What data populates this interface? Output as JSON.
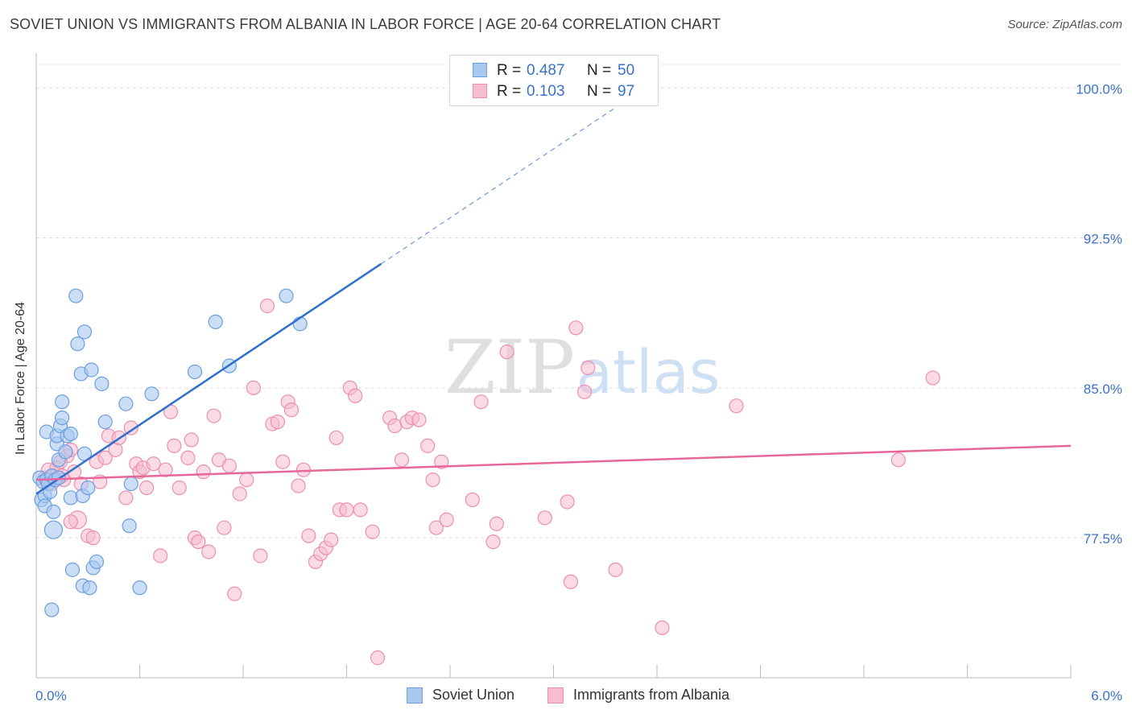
{
  "title": "SOVIET UNION VS IMMIGRANTS FROM ALBANIA IN LABOR FORCE | AGE 20-64 CORRELATION CHART",
  "source": "Source: ZipAtlas.com",
  "watermark": {
    "zip": "ZIP",
    "atlas": "atlas"
  },
  "colors": {
    "blue_fill": "#a9c8f0",
    "blue_stroke": "#6a9fe0",
    "blue_line": "#2e6fcc",
    "pink_fill": "#f6bcd0",
    "pink_stroke": "#ec8fb0",
    "pink_line": "#e8679a",
    "grid": "#e0e0e0",
    "tick_text": "#3a72c7"
  },
  "stats_legend": {
    "rows": [
      {
        "r_label": "R =",
        "r_value": "0.487",
        "n_label": "N =",
        "n_value": "50"
      },
      {
        "r_label": "R =",
        "r_value": "0.103",
        "n_label": "N =",
        "n_value": "97"
      }
    ]
  },
  "bottom_legend": [
    "Soviet Union",
    "Immigrants from Albania"
  ],
  "chart_data": {
    "type": "scatter",
    "title": "SOVIET UNION VS IMMIGRANTS FROM ALBANIA IN LABOR FORCE | AGE 20-64 CORRELATION CHART",
    "xlabel": "",
    "ylabel": "In Labor Force | Age 20-64",
    "xlim": [
      0.0,
      6.0
    ],
    "ylim": [
      70.5,
      101.5
    ],
    "x_tick_labels": [
      "0.0%",
      "6.0%"
    ],
    "y_ticks": [
      77.5,
      85.0,
      92.5,
      100.0
    ],
    "y_tick_labels": [
      "77.5%",
      "85.0%",
      "92.5%",
      "100.0%"
    ],
    "grid": true,
    "legend_position": "top-center",
    "series": [
      {
        "name": "Soviet Union",
        "r": 0.487,
        "n": 50,
        "trend": {
          "x0": 0.0,
          "y0": 79.7,
          "x1": 2.0,
          "y1": 91.2,
          "dashed_to_x": 3.35
        },
        "points": [
          [
            0.02,
            80.5
          ],
          [
            0.03,
            79.4
          ],
          [
            0.04,
            80.3
          ],
          [
            0.05,
            79.6
          ],
          [
            0.05,
            79.1
          ],
          [
            0.06,
            80.4
          ],
          [
            0.06,
            82.8
          ],
          [
            0.07,
            80.2
          ],
          [
            0.08,
            79.8
          ],
          [
            0.09,
            80.6
          ],
          [
            0.1,
            78.8
          ],
          [
            0.1,
            77.9
          ],
          [
            0.11,
            80.4
          ],
          [
            0.12,
            82.2
          ],
          [
            0.12,
            82.6
          ],
          [
            0.13,
            81.4
          ],
          [
            0.13,
            80.5
          ],
          [
            0.14,
            83.1
          ],
          [
            0.15,
            84.3
          ],
          [
            0.15,
            83.5
          ],
          [
            0.17,
            81.8
          ],
          [
            0.18,
            82.6
          ],
          [
            0.2,
            82.7
          ],
          [
            0.2,
            79.5
          ],
          [
            0.21,
            75.9
          ],
          [
            0.23,
            89.6
          ],
          [
            0.24,
            87.2
          ],
          [
            0.26,
            85.7
          ],
          [
            0.27,
            75.1
          ],
          [
            0.27,
            79.6
          ],
          [
            0.28,
            87.8
          ],
          [
            0.28,
            81.7
          ],
          [
            0.3,
            80.0
          ],
          [
            0.31,
            75.0
          ],
          [
            0.32,
            85.9
          ],
          [
            0.33,
            76.0
          ],
          [
            0.35,
            76.3
          ],
          [
            0.38,
            85.2
          ],
          [
            0.4,
            83.3
          ],
          [
            0.52,
            84.2
          ],
          [
            0.54,
            78.1
          ],
          [
            0.55,
            80.2
          ],
          [
            0.6,
            75.0
          ],
          [
            0.67,
            84.7
          ],
          [
            0.92,
            85.8
          ],
          [
            1.04,
            88.3
          ],
          [
            1.12,
            86.1
          ],
          [
            1.45,
            89.6
          ],
          [
            1.53,
            88.2
          ],
          [
            0.09,
            73.9
          ]
        ]
      },
      {
        "name": "Immigrants from Albania",
        "r": 0.103,
        "n": 97,
        "trend": {
          "x0": 0.0,
          "y0": 80.4,
          "x1": 6.0,
          "y1": 82.1
        },
        "points": [
          [
            0.05,
            80.5
          ],
          [
            0.07,
            80.9
          ],
          [
            0.09,
            80.2
          ],
          [
            0.1,
            80.6
          ],
          [
            0.12,
            81.0
          ],
          [
            0.15,
            80.6
          ],
          [
            0.16,
            80.4
          ],
          [
            0.18,
            81.6
          ],
          [
            0.2,
            81.9
          ],
          [
            0.22,
            80.8
          ],
          [
            0.24,
            78.4
          ],
          [
            0.26,
            80.2
          ],
          [
            0.3,
            77.6
          ],
          [
            0.33,
            77.5
          ],
          [
            0.35,
            81.3
          ],
          [
            0.37,
            80.3
          ],
          [
            0.4,
            81.5
          ],
          [
            0.42,
            82.6
          ],
          [
            0.46,
            81.9
          ],
          [
            0.48,
            82.5
          ],
          [
            0.52,
            79.5
          ],
          [
            0.55,
            83.0
          ],
          [
            0.58,
            81.2
          ],
          [
            0.6,
            80.8
          ],
          [
            0.62,
            81.0
          ],
          [
            0.64,
            80.0
          ],
          [
            0.68,
            81.2
          ],
          [
            0.72,
            76.6
          ],
          [
            0.75,
            80.9
          ],
          [
            0.78,
            83.8
          ],
          [
            0.8,
            82.1
          ],
          [
            0.83,
            80.0
          ],
          [
            0.88,
            81.5
          ],
          [
            0.9,
            82.4
          ],
          [
            0.92,
            77.5
          ],
          [
            0.94,
            77.3
          ],
          [
            0.97,
            80.8
          ],
          [
            1.0,
            76.8
          ],
          [
            1.03,
            83.6
          ],
          [
            1.06,
            81.4
          ],
          [
            1.09,
            78.0
          ],
          [
            1.12,
            81.1
          ],
          [
            1.15,
            74.7
          ],
          [
            1.18,
            79.7
          ],
          [
            1.22,
            80.4
          ],
          [
            1.26,
            85.0
          ],
          [
            1.3,
            76.6
          ],
          [
            1.34,
            89.1
          ],
          [
            1.37,
            83.2
          ],
          [
            1.4,
            83.3
          ],
          [
            1.43,
            81.3
          ],
          [
            1.46,
            84.3
          ],
          [
            1.48,
            83.9
          ],
          [
            1.52,
            80.1
          ],
          [
            1.55,
            80.9
          ],
          [
            1.58,
            77.6
          ],
          [
            1.62,
            76.3
          ],
          [
            1.65,
            76.7
          ],
          [
            1.68,
            77.0
          ],
          [
            1.71,
            77.4
          ],
          [
            1.74,
            82.5
          ],
          [
            1.76,
            78.9
          ],
          [
            1.8,
            78.9
          ],
          [
            1.82,
            85.0
          ],
          [
            1.85,
            84.6
          ],
          [
            1.88,
            78.9
          ],
          [
            1.95,
            77.8
          ],
          [
            1.98,
            71.5
          ],
          [
            2.05,
            83.5
          ],
          [
            2.08,
            83.1
          ],
          [
            2.12,
            81.4
          ],
          [
            2.15,
            83.3
          ],
          [
            2.18,
            83.5
          ],
          [
            2.22,
            83.4
          ],
          [
            2.27,
            82.1
          ],
          [
            2.3,
            80.4
          ],
          [
            2.32,
            78.0
          ],
          [
            2.35,
            81.3
          ],
          [
            2.38,
            78.4
          ],
          [
            2.53,
            79.4
          ],
          [
            2.58,
            84.3
          ],
          [
            2.65,
            77.3
          ],
          [
            2.67,
            78.2
          ],
          [
            2.73,
            86.8
          ],
          [
            2.95,
            78.5
          ],
          [
            3.08,
            79.3
          ],
          [
            3.1,
            75.3
          ],
          [
            3.13,
            88.0
          ],
          [
            3.18,
            84.8
          ],
          [
            3.2,
            86.0
          ],
          [
            3.36,
            75.9
          ],
          [
            3.63,
            73.0
          ],
          [
            4.06,
            84.1
          ],
          [
            5.0,
            81.4
          ],
          [
            5.2,
            85.5
          ],
          [
            0.2,
            78.3
          ],
          [
            0.14,
            81.3
          ]
        ]
      }
    ]
  }
}
